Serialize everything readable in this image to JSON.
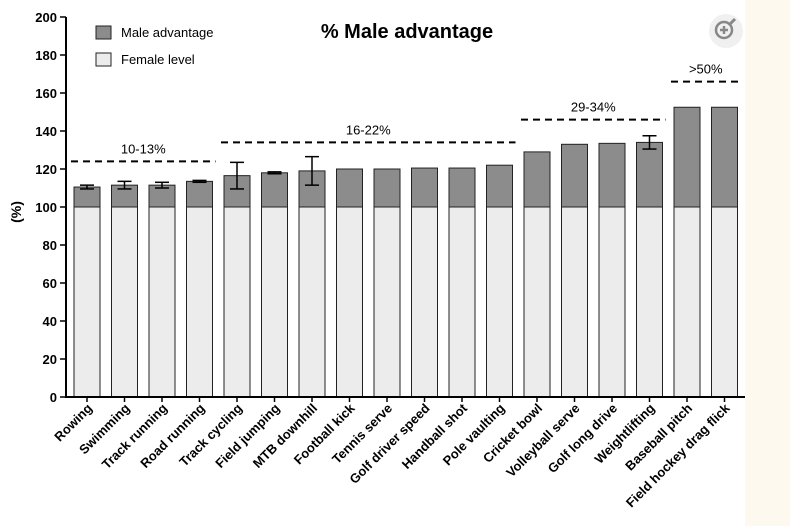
{
  "colors": {
    "male_fill": "#8c8c8c",
    "female_fill": "#ececec",
    "bar_stroke": "#222222",
    "background": "#ffffff",
    "side_strip": "#fdf9ee"
  },
  "zoom_control": {
    "icon": "zoom-in-icon"
  },
  "chart_data": {
    "type": "bar",
    "stacked": true,
    "title": "% Male advantage",
    "xlabel": "",
    "ylabel": "(%)",
    "ylim": [
      0,
      200
    ],
    "yticks": [
      0,
      20,
      40,
      60,
      80,
      100,
      120,
      140,
      160,
      180,
      200
    ],
    "grid": false,
    "legend_position": "top-left",
    "categories": [
      "Rowing",
      "Swimming",
      "Track running",
      "Road running",
      "Track cycling",
      "Field jumping",
      "MTB downhill",
      "Football kick",
      "Tennis serve",
      "Golf driver speed",
      "Handball shot",
      "Pole vaulting",
      "Cricket bowl",
      "Volleyball serve",
      "Golf long drive",
      "Weightlifting",
      "Baseball pitch",
      "Field hockey drag flick"
    ],
    "series": [
      {
        "name": "Female level",
        "values": [
          100,
          100,
          100,
          100,
          100,
          100,
          100,
          100,
          100,
          100,
          100,
          100,
          100,
          100,
          100,
          100,
          100,
          100
        ]
      },
      {
        "name": "Male advantage",
        "values": [
          10.5,
          11.5,
          11.5,
          13.5,
          16.5,
          18,
          19,
          20,
          20,
          20.5,
          20.5,
          22,
          29,
          33,
          33.5,
          34,
          52.5,
          52.5
        ]
      }
    ],
    "error_bars": [
      1,
      2,
      1.5,
      0.5,
      7,
      0.5,
      7.5,
      0,
      0,
      0,
      0,
      0,
      0,
      0,
      0,
      3.5,
      0,
      0
    ],
    "annotations": [
      {
        "text": "10-13%",
        "from": "Rowing",
        "to": "Road running",
        "level": 124
      },
      {
        "text": "16-22%",
        "from": "Track cycling",
        "to": "Pole vaulting",
        "level": 134
      },
      {
        "text": "29-34%",
        "from": "Cricket bowl",
        "to": "Weightlifting",
        "level": 146
      },
      {
        "text": ">50%",
        "from": "Baseball pitch",
        "to": "Field hockey drag flick",
        "level": 166
      }
    ]
  }
}
